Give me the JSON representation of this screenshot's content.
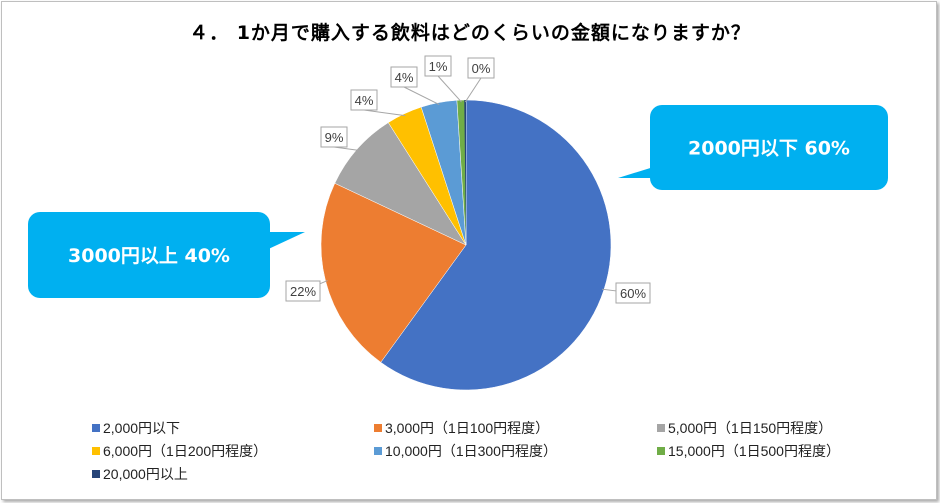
{
  "chart_data": {
    "type": "pie",
    "title": "４． 1か月で購入する飲料はどのくらいの金額になりますか？",
    "categories": [
      "2,000円以下",
      "3,000円（1日100円程度）",
      "5,000円（1日150円程度）",
      "6,000円（1日200円程度）",
      "10,000円（1日300円程度）",
      "15,000円（1日500円程度）",
      "20,000円以上"
    ],
    "values": [
      60,
      22,
      9,
      4,
      4,
      1,
      0
    ],
    "data_labels": [
      "60%",
      "22%",
      "9%",
      "4%",
      "4%",
      "1%",
      "0%"
    ],
    "colors": [
      "#4472C4",
      "#ED7D31",
      "#A5A5A5",
      "#FFC000",
      "#5B9BD5",
      "#70AD47",
      "#264478"
    ],
    "legend_position": "bottom",
    "annotations": [
      {
        "text": "2000円以下 60%",
        "color": "#00B0F0"
      },
      {
        "text": "3000円以上 40%",
        "color": "#00B0F0"
      }
    ]
  }
}
